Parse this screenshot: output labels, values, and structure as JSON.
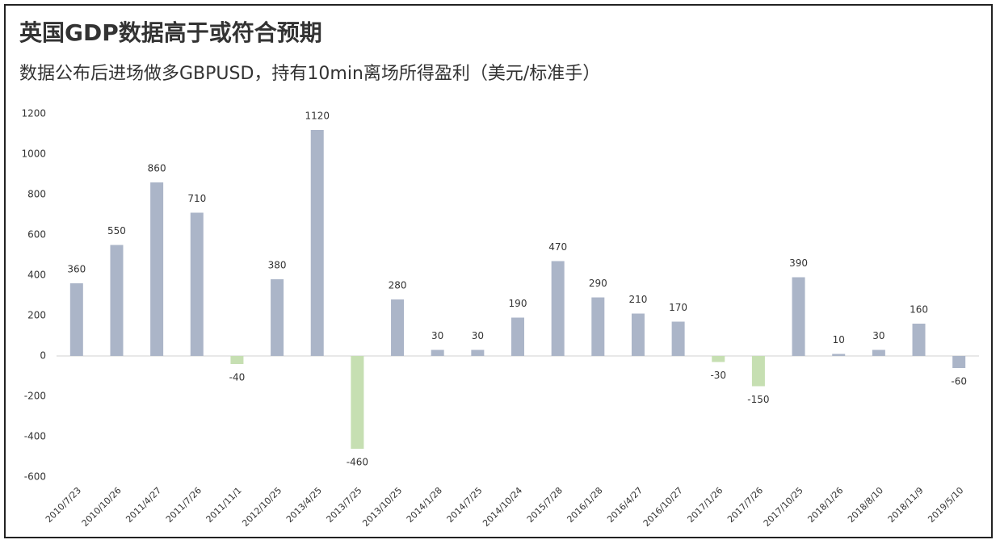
{
  "chart_data": {
    "type": "bar",
    "title": "英国GDP数据高于或符合预期",
    "subtitle": "数据公布后进场做多GBPUSD，持有10min离场所得盈利（美元/标准手）",
    "categories": [
      "2010/7/23",
      "2010/10/26",
      "2011/4/27",
      "2011/7/26",
      "2011/11/1",
      "2012/10/25",
      "2013/4/25",
      "2013/7/25",
      "2013/10/25",
      "2014/1/28",
      "2014/7/25",
      "2014/10/24",
      "2015/7/28",
      "2016/1/28",
      "2016/4/27",
      "2016/10/27",
      "2017/1/26",
      "2017/7/26",
      "2017/10/25",
      "2018/1/26",
      "2018/8/10",
      "2018/11/9",
      "2019/5/10"
    ],
    "values": [
      360,
      550,
      860,
      710,
      -40,
      380,
      1120,
      -460,
      280,
      30,
      30,
      190,
      470,
      290,
      210,
      170,
      -30,
      -150,
      390,
      10,
      30,
      160,
      -60
    ],
    "colors": [
      "#abb5c8",
      "#abb5c8",
      "#abb5c8",
      "#abb5c8",
      "#c6dfb2",
      "#abb5c8",
      "#abb5c8",
      "#c6dfb2",
      "#abb5c8",
      "#abb5c8",
      "#abb5c8",
      "#abb5c8",
      "#abb5c8",
      "#abb5c8",
      "#abb5c8",
      "#abb5c8",
      "#c6dfb2",
      "#c6dfb2",
      "#abb5c8",
      "#abb5c8",
      "#abb5c8",
      "#abb5c8",
      "#abb5c8"
    ],
    "ylim": [
      -600,
      1200
    ],
    "yticks": [
      -600,
      -400,
      -200,
      0,
      200,
      400,
      600,
      800,
      1000,
      1200
    ],
    "grid": false
  }
}
